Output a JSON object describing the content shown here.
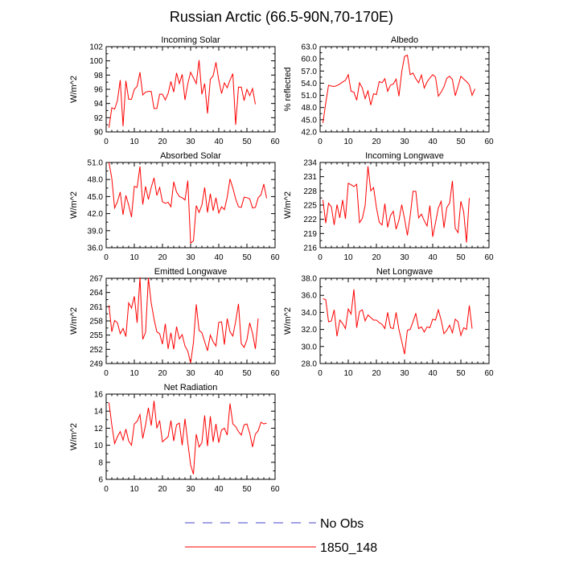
{
  "title": "Russian Arctic (66.5-90N,70-170E)",
  "legend": [
    {
      "label": "No Obs",
      "color": "#4444cc",
      "dash": true
    },
    {
      "label": "1850_148",
      "color": "#ff0000",
      "dash": false
    }
  ],
  "colors": {
    "series": "#ff0000"
  },
  "chart_data": [
    {
      "type": "line",
      "title": "Incoming Solar",
      "ylabel": "W/m^2",
      "xlim": [
        0,
        60
      ],
      "ylim": [
        90,
        102
      ],
      "xticks": [
        0,
        10,
        20,
        30,
        40,
        50,
        60
      ],
      "yticks": [
        90,
        92,
        94,
        96,
        98,
        100,
        102
      ],
      "ytick_labels": [
        "90",
        "92",
        "94",
        "96",
        "98",
        "100",
        "102"
      ],
      "series": [
        {
          "x_start": 1,
          "x_step": 1,
          "values": [
            90.6,
            93.4,
            93.2,
            94.4,
            97.3,
            90.8,
            97.2,
            94.6,
            94.6,
            96.0,
            96.4,
            98.4,
            95.2,
            95.6,
            95.7,
            95.7,
            93.3,
            93.3,
            95.3,
            95.3,
            94.5,
            95.4,
            97.1,
            95.6,
            98.3,
            96.8,
            98.1,
            94.5,
            96.8,
            98.4,
            97.6,
            96.8,
            100.1,
            95.3,
            96.8,
            92.6,
            97.4,
            97.9,
            99.8,
            97.3,
            95.4,
            96.9,
            96.2,
            97.3,
            98.2,
            91.0,
            96.3,
            96.3,
            94.4,
            96.0,
            95.1,
            96.1,
            93.9
          ]
        }
      ]
    },
    {
      "type": "line",
      "title": "Albedo",
      "ylabel": "% reflected",
      "xlim": [
        0,
        60
      ],
      "ylim": [
        42,
        63
      ],
      "xticks": [
        0,
        10,
        20,
        30,
        40,
        50,
        60
      ],
      "yticks": [
        42,
        45,
        48,
        51,
        54,
        57,
        60,
        63
      ],
      "ytick_labels": [
        "42.0",
        "45.0",
        "48.0",
        "51.0",
        "54.0",
        "57.0",
        "60.0",
        "63.0"
      ],
      "series": [
        {
          "x_start": 1,
          "x_step": 1,
          "values": [
            44.2,
            49.1,
            53.5,
            53.3,
            53.2,
            53.4,
            53.8,
            54.3,
            54.7,
            56.1,
            52.0,
            51.8,
            49.8,
            54.1,
            52.8,
            50.2,
            52.1,
            48.6,
            51.4,
            51.2,
            54.4,
            54.1,
            55.1,
            52.0,
            53.5,
            53.8,
            55.0,
            50.8,
            56.8,
            60.6,
            60.9,
            56.1,
            56.5,
            55.1,
            54.1,
            56.0,
            52.8,
            54.3,
            55.3,
            56.1,
            55.5,
            50.8,
            51.8,
            53.1,
            55.2,
            55.7,
            54.9,
            50.9,
            53.2,
            55.7,
            55.0,
            54.4,
            53.6,
            51.0,
            52.6
          ]
        }
      ]
    },
    {
      "type": "line",
      "title": "Absorbed Solar",
      "ylabel": "W/m^2",
      "xlim": [
        0,
        60
      ],
      "ylim": [
        36,
        51
      ],
      "xticks": [
        0,
        10,
        20,
        30,
        40,
        50,
        60
      ],
      "yticks": [
        36,
        39,
        42,
        45,
        48,
        51
      ],
      "ytick_labels": [
        "36.0",
        "39.0",
        "42.0",
        "45.0",
        "48.0",
        "51.0"
      ],
      "series": [
        {
          "x_start": 1,
          "x_step": 1,
          "values": [
            51.0,
            48.2,
            43.0,
            44.1,
            45.8,
            41.8,
            45.2,
            43.5,
            41.4,
            46.8,
            46.6,
            50.3,
            43.6,
            46.8,
            44.5,
            46.6,
            48.3,
            45.2,
            46.6,
            44.1,
            43.8,
            44.0,
            43.2,
            47.6,
            45.8,
            45.0,
            44.8,
            44.4,
            47.8,
            36.8,
            37.2,
            43.4,
            42.2,
            43.5,
            46.6,
            42.2,
            45.5,
            42.5,
            44.8,
            42.1,
            43.2,
            42.7,
            44.9,
            48.1,
            46.5,
            44.6,
            43.2,
            43.1,
            44.9,
            44.8,
            44.6,
            43.0,
            43.1,
            44.8,
            45.3,
            47.2,
            44.7
          ]
        }
      ]
    },
    {
      "type": "line",
      "title": "Incoming Longwave",
      "ylabel": "W/m^2",
      "xlim": [
        0,
        60
      ],
      "ylim": [
        216,
        234
      ],
      "xticks": [
        0,
        10,
        20,
        30,
        40,
        50,
        60
      ],
      "yticks": [
        216,
        219,
        222,
        225,
        228,
        231,
        234
      ],
      "ytick_labels": [
        "216",
        "219",
        "222",
        "225",
        "228",
        "231",
        "234"
      ],
      "series": [
        {
          "x_start": 1,
          "x_step": 1,
          "values": [
            226.1,
            221.2,
            225.4,
            224.6,
            220.8,
            225.1,
            222.3,
            226.1,
            222.1,
            229.6,
            229.3,
            228.9,
            229.4,
            221.3,
            222.2,
            224.9,
            233.2,
            228.0,
            228.7,
            224.5,
            221.4,
            220.8,
            225.3,
            220.3,
            222.8,
            223.7,
            219.9,
            221.8,
            225.1,
            222.1,
            218.6,
            222.7,
            227.9,
            227.9,
            222.3,
            223.1,
            221.7,
            220.6,
            224.9,
            218.3,
            221.3,
            224.4,
            225.8,
            220.2,
            224.5,
            225.4,
            230.1,
            220.1,
            219.2,
            225.8,
            223.6,
            217.1,
            226.5
          ]
        }
      ]
    },
    {
      "type": "line",
      "title": "Emitted Longwave",
      "ylabel": "W/m^2",
      "xlim": [
        0,
        60
      ],
      "ylim": [
        249,
        267
      ],
      "xticks": [
        0,
        10,
        20,
        30,
        40,
        50,
        60
      ],
      "yticks": [
        249,
        252,
        255,
        258,
        261,
        264,
        267
      ],
      "ytick_labels": [
        "249",
        "252",
        "255",
        "258",
        "261",
        "264",
        "267"
      ],
      "series": [
        {
          "x_start": 1,
          "x_step": 1,
          "values": [
            261.3,
            255.7,
            258.1,
            257.6,
            255.3,
            256.4,
            254.7,
            261.8,
            260.7,
            263.2,
            257.6,
            267.2,
            254.1,
            255.6,
            267.1,
            261.8,
            258.4,
            255.7,
            255.3,
            253.1,
            257.4,
            252.1,
            255.5,
            252.0,
            256.8,
            254.2,
            255.1,
            252.7,
            251.6,
            249.1,
            253.4,
            261.5,
            256.0,
            255.5,
            253.6,
            251.7,
            255.0,
            253.6,
            252.7,
            257.7,
            257.8,
            253.0,
            258.5,
            255.7,
            254.8,
            257.9,
            261.6,
            253.2,
            252.4,
            254.0,
            257.6,
            255.4,
            252.1,
            258.5
          ]
        }
      ]
    },
    {
      "type": "line",
      "title": "Net Longwave",
      "ylabel": "W/m^2",
      "xlim": [
        0,
        60
      ],
      "ylim": [
        28,
        38
      ],
      "xticks": [
        0,
        10,
        20,
        30,
        40,
        50,
        60
      ],
      "yticks": [
        28,
        30,
        32,
        34,
        36,
        38
      ],
      "ytick_labels": [
        "28.0",
        "30.0",
        "32.0",
        "34.0",
        "36.0",
        "38.0"
      ],
      "series": [
        {
          "x_start": 1,
          "x_step": 1,
          "values": [
            35.6,
            35.5,
            32.9,
            33.0,
            34.3,
            31.2,
            33.1,
            32.7,
            32.1,
            34.4,
            33.8,
            36.7,
            32.2,
            34.1,
            34.3,
            33.0,
            33.7,
            33.4,
            33.1,
            33.1,
            32.8,
            32.6,
            32.1,
            34.0,
            32.2,
            32.1,
            34.0,
            32.0,
            30.6,
            29.1,
            31.9,
            32.0,
            32.9,
            33.9,
            32.1,
            32.3,
            31.7,
            32.3,
            32.2,
            33.2,
            33.1,
            34.3,
            33.1,
            31.5,
            31.9,
            32.5,
            31.6,
            33.2,
            32.9,
            31.3,
            32.2,
            32.0,
            34.8,
            32.1
          ]
        }
      ]
    },
    {
      "type": "line",
      "title": "Net Radiation",
      "ylabel": "W/m^2",
      "xlim": [
        0,
        60
      ],
      "ylim": [
        6,
        16
      ],
      "xticks": [
        0,
        10,
        20,
        30,
        40,
        50,
        60
      ],
      "yticks": [
        6,
        8,
        10,
        12,
        14,
        16
      ],
      "ytick_labels": [
        "6",
        "8",
        "10",
        "12",
        "14",
        "16"
      ],
      "series": [
        {
          "x_start": 1,
          "x_step": 1,
          "values": [
            15.0,
            12.4,
            10.2,
            11.0,
            11.6,
            10.6,
            11.9,
            10.5,
            10.0,
            12.5,
            12.8,
            13.6,
            10.8,
            12.4,
            14.4,
            12.3,
            15.2,
            12.0,
            12.9,
            10.4,
            10.7,
            11.0,
            12.9,
            10.5,
            12.4,
            12.6,
            10.0,
            13.1,
            10.3,
            7.7,
            6.6,
            11.3,
            9.8,
            10.3,
            13.5,
            9.9,
            13.4,
            10.4,
            12.5,
            10.3,
            11.8,
            12.0,
            11.2,
            14.9,
            12.5,
            12.2,
            11.6,
            11.2,
            12.4,
            12.5,
            11.4,
            9.8,
            11.3,
            11.7,
            12.7,
            12.5,
            12.6
          ]
        }
      ]
    }
  ]
}
